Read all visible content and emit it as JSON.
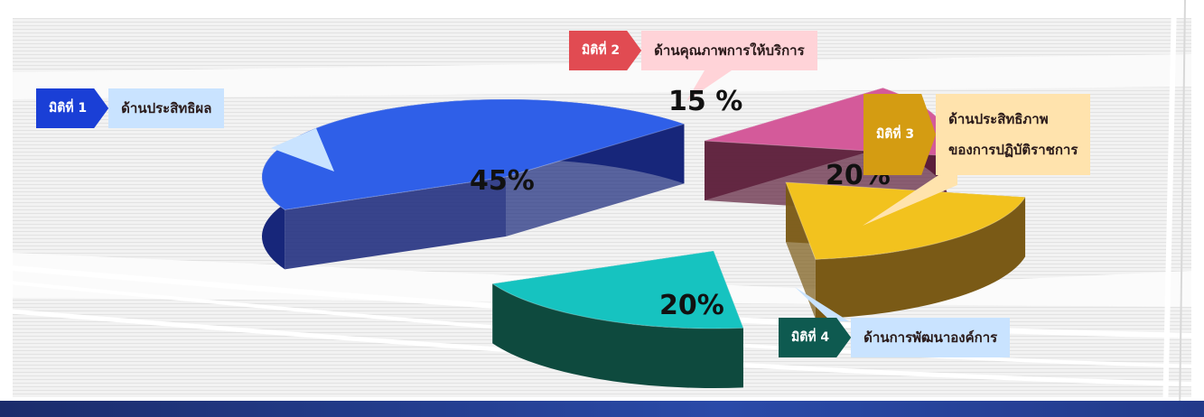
{
  "chart_data": {
    "type": "pie",
    "slices": [
      {
        "label_badge": "มิติที่ 1",
        "label": "ด้านประสิทธิผล",
        "value": 45,
        "value_label": "45%",
        "color": "#2f5fe8",
        "side": "#17267a"
      },
      {
        "label_badge": "มิติที่ 2",
        "label": "ด้านคุณภาพการให้บริการ",
        "value": 15,
        "value_label": "15 %",
        "color": "#d45a9a",
        "side": "#5c1e3a"
      },
      {
        "label_badge": "มิติที่ 3",
        "label": "ด้านประสิทธิภาพของการปฏิบัติราชการ",
        "value": 20,
        "value_label": "20%",
        "color": "#f2c21e",
        "side": "#7a5a16"
      },
      {
        "label_badge": "มิติที่ 4",
        "label": "ด้านการพัฒนาองค์การ",
        "value": 20,
        "value_label": "20%",
        "color": "#16c3c0",
        "side": "#0e4a3e"
      }
    ]
  },
  "labels": {
    "d1": {
      "badge": "มิติที่ 1",
      "text": "ด้านประสิทธิผล",
      "badge_color": "#1a3fd6",
      "bg": "#c9e3ff"
    },
    "d2": {
      "badge": "มิติที่ 2",
      "text": "ด้านคุณภาพการให้บริการ",
      "badge_color": "#e14b52",
      "bg": "#ffd3d8"
    },
    "d3": {
      "badge": "มิติที่ 3",
      "text_line1": "ด้านประสิทธิภาพ",
      "text_line2": "ของการปฏิบัติราชการ",
      "badge_color": "#d49c12",
      "bg": "#ffe3ad"
    },
    "d4": {
      "badge": "มิติที่ 4",
      "text": "ด้านการพัฒนาองค์การ",
      "badge_color": "#0e5a50",
      "bg": "#c9e3ff"
    }
  }
}
